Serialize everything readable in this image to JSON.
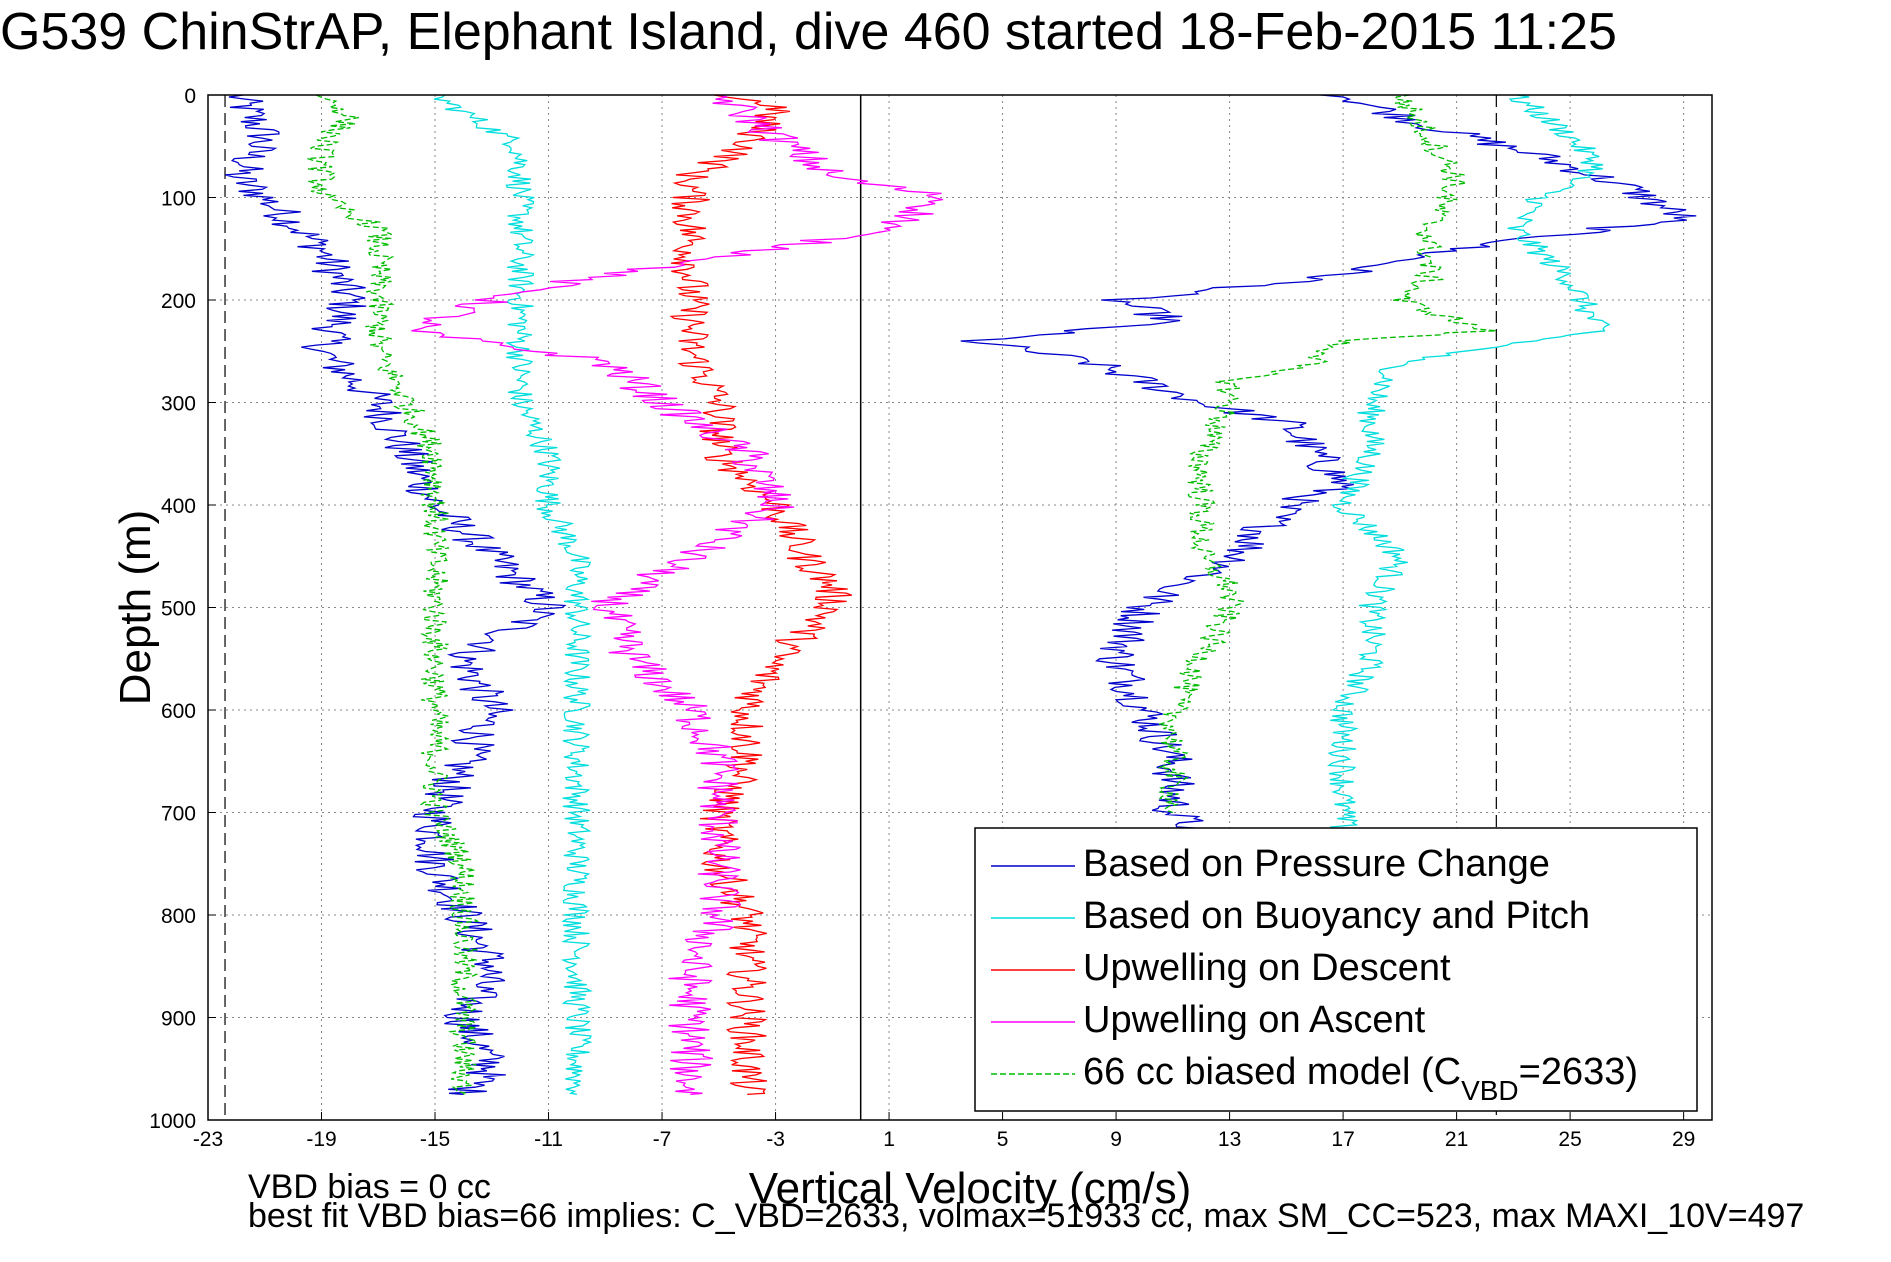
{
  "chart_data": {
    "type": "line",
    "title": "G539 ChinStrAP, Elephant Island, dive 460 started 18-Feb-2015 11:25",
    "xlabel": "Vertical Velocity (cm/s)",
    "ylabel": "Depth (m)",
    "xlim": [
      -23,
      30
    ],
    "ylim": [
      0,
      1000
    ],
    "y_reversed": true,
    "grid": true,
    "legend_position": "bottom-right",
    "x_ticks": [
      "-23",
      "-19",
      "-15",
      "-11",
      "-7",
      "-3",
      "1",
      "5",
      "9",
      "13",
      "17",
      "21",
      "25",
      "29"
    ],
    "y_ticks": [
      "0",
      "100",
      "200",
      "300",
      "400",
      "500",
      "600",
      "700",
      "800",
      "900",
      "1000"
    ],
    "reference_lines": {
      "zero_x": 0,
      "bounds_x": [
        -22.4,
        22.4
      ]
    },
    "series": [
      {
        "name": "Based on Pressure Change",
        "color": "#0000cc",
        "style": "solid",
        "noise": 0.8,
        "segments": [
          {
            "depth": [
              0,
              40,
              80,
              100,
              150,
              200,
              250,
              300,
              350,
              400,
              450,
              500,
              550,
              600,
              650,
              700,
              750,
              800,
              850,
              900,
              950,
              975
            ],
            "values": [
              -22,
              -21,
              -22,
              -21,
              -19,
              -18,
              -19,
              -17,
              -16,
              -15,
              -13,
              -11,
              -14,
              -13,
              -14,
              -15,
              -15,
              -14,
              -13,
              -14,
              -13,
              -14
            ]
          },
          {
            "depth": [
              0,
              30,
              60,
              90,
              120,
              150,
              180,
              200,
              220,
              240,
              260,
              280,
              300,
              320,
              350,
              380,
              400,
              430,
              460,
              480,
              500,
              550,
              600,
              650,
              700,
              720
            ],
            "values": [
              17,
              20,
              24,
              27,
              29,
              21,
              16,
              9,
              11,
              4,
              8,
              10,
              12,
              15,
              16,
              17,
              15,
              14,
              13,
              11,
              10,
              9,
              10,
              11,
              11,
              12
            ]
          }
        ]
      },
      {
        "name": "Based on Buoyancy and Pitch",
        "color": "#00dddd",
        "style": "solid",
        "noise": 0.5,
        "segments": [
          {
            "depth": [
              0,
              50,
              100,
              150,
              200,
              250,
              300,
              350,
              400,
              450,
              500,
              550,
              600,
              650,
              700,
              750,
              800,
              850,
              900,
              975
            ],
            "values": [
              -15,
              -12,
              -12,
              -12,
              -12,
              -12,
              -12,
              -11,
              -11,
              -10,
              -10,
              -10,
              -10,
              -10,
              -10,
              -10,
              -10,
              -10,
              -10,
              -10
            ]
          },
          {
            "depth": [
              0,
              40,
              70,
              100,
              130,
              180,
              230,
              260,
              300,
              350,
              400,
              450,
              500,
              550,
              600,
              650,
              700,
              720
            ],
            "values": [
              23,
              25,
              26,
              24,
              23,
              25,
              26,
              19,
              18,
              18,
              17,
              19,
              18,
              18,
              17,
              17,
              17,
              17
            ]
          }
        ]
      },
      {
        "name": "Upwelling on Descent",
        "color": "#ff0000",
        "style": "solid",
        "noise": 0.7,
        "segments": [
          {
            "depth": [
              0,
              10,
              50,
              80,
              100,
              150,
              200,
              250,
              300,
              350,
              400,
              450,
              480,
              500,
              550,
              600,
              650,
              700,
              750,
              800,
              850,
              900,
              950,
              975
            ],
            "values": [
              -5,
              -3,
              -4,
              -6,
              -6,
              -6,
              -6,
              -6,
              -5,
              -5,
              -3,
              -2,
              -1,
              -1,
              -3,
              -4,
              -4,
              -5,
              -5,
              -4,
              -4,
              -4,
              -4,
              -4
            ]
          }
        ]
      },
      {
        "name": "Upwelling on Ascent",
        "color": "#ff00ff",
        "style": "solid",
        "noise": 0.8,
        "segments": [
          {
            "depth": [
              0,
              40,
              80,
              100,
              130,
              160,
              180,
              200,
              230,
              260,
              300,
              350,
              400,
              450,
              480,
              500,
              550,
              600,
              650,
              700,
              750,
              800,
              850,
              900,
              950,
              975
            ],
            "values": [
              -5,
              -3,
              -1,
              3,
              1,
              -5,
              -10,
              -13,
              -16,
              -9,
              -7,
              -4,
              -3,
              -6,
              -8,
              -9,
              -8,
              -6,
              -5,
              -5,
              -5,
              -5,
              -6,
              -6,
              -6,
              -6
            ]
          }
        ]
      },
      {
        "name": "66 cc biased model (C_VBD=2633)",
        "color": "#00bb00",
        "style": "dashed",
        "noise": 0.5,
        "segments": [
          {
            "depth": [
              0,
              20,
              50,
              100,
              130,
              160,
              200,
              250,
              300,
              350,
              400,
              450,
              500,
              550,
              600,
              650,
              700,
              750,
              800,
              850,
              900,
              950,
              975
            ],
            "values": [
              -19,
              -18,
              -19,
              -19,
              -17,
              -17,
              -17,
              -17,
              -16,
              -15,
              -15,
              -15,
              -15,
              -15,
              -15,
              -15,
              -15,
              -14,
              -14,
              -14,
              -14,
              -14,
              -14
            ]
          },
          {
            "depth": [
              0,
              40,
              80,
              130,
              180,
              200,
              230,
              240,
              260,
              280,
              300,
              350,
              400,
              450,
              480,
              500,
              550,
              600,
              650,
              700
            ],
            "values": [
              19,
              20,
              21,
              20,
              20,
              19,
              22,
              17,
              16,
              13,
              13,
              12,
              12,
              12,
              13,
              13,
              12,
              11,
              11,
              11
            ]
          }
        ]
      }
    ],
    "legend": [
      {
        "label": "Based on Pressure Change",
        "color": "#0000cc",
        "style": "solid"
      },
      {
        "label": "Based on Buoyancy and Pitch",
        "color": "#00dddd",
        "style": "solid"
      },
      {
        "label": "Upwelling on Descent",
        "color": "#ff0000",
        "style": "solid"
      },
      {
        "label": "Upwelling on Ascent",
        "color": "#ff00ff",
        "style": "solid"
      },
      {
        "label": "66 cc biased model (C",
        "sub": "VBD",
        "tail": "=2633)",
        "color": "#00bb00",
        "style": "dashed"
      }
    ]
  },
  "footer": {
    "line1": "VBD bias = 0 cc",
    "line2": "best fit VBD bias=66 implies: C_VBD=2633, volmax=51933 cc, max SM_CC=523, max MAXI_10V=497"
  }
}
